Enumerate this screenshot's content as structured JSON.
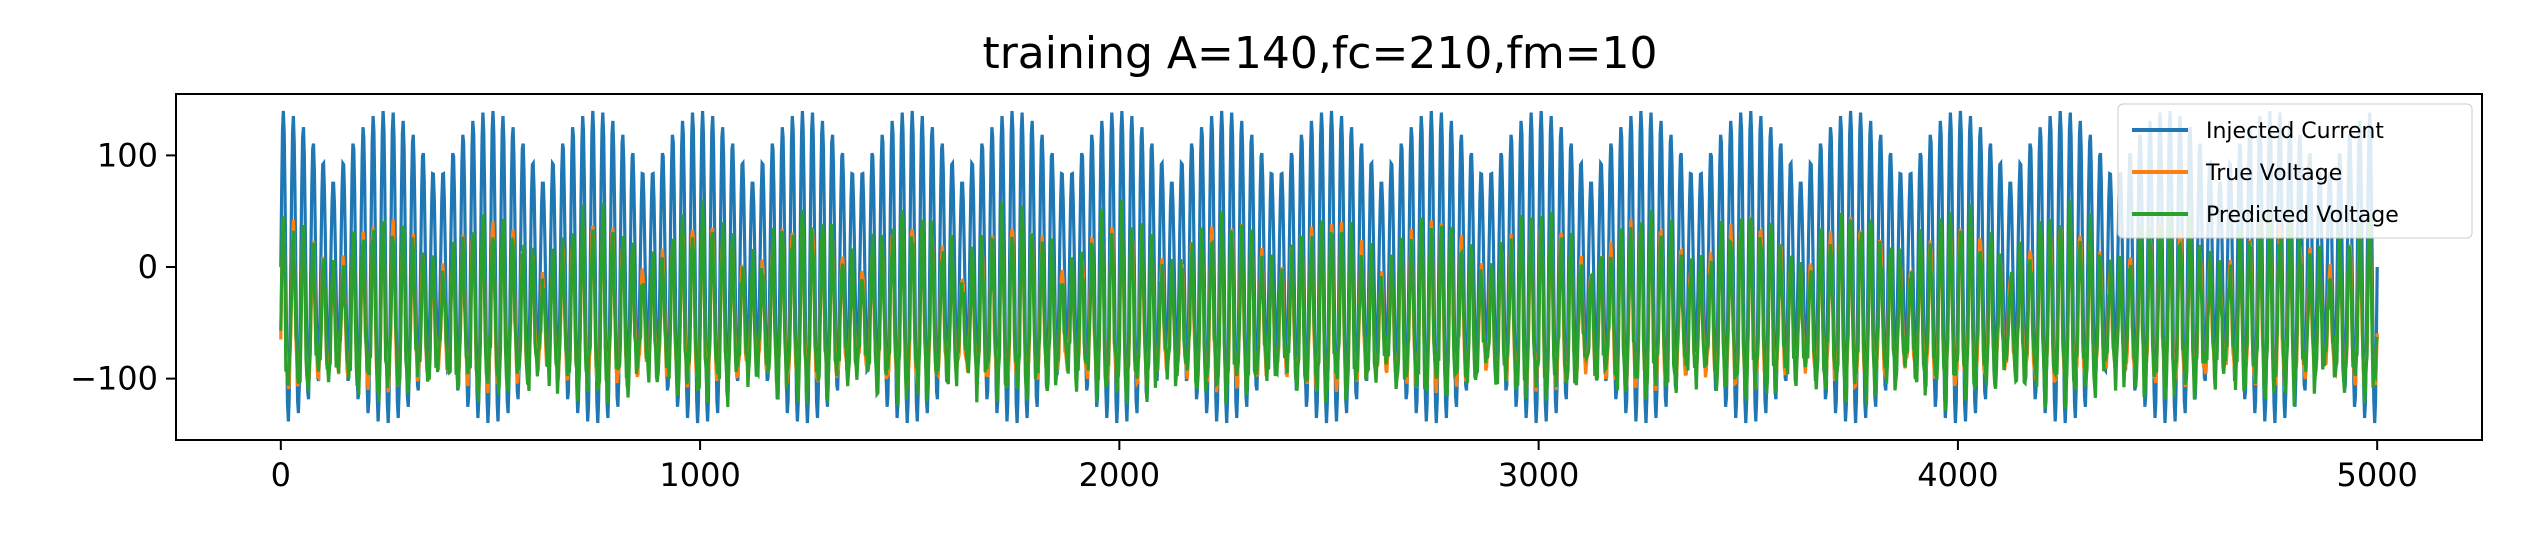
{
  "chart_data": {
    "type": "line",
    "title": "training A=140,fc=210,fm=10",
    "xlabel": "",
    "ylabel": "",
    "xlim": [
      -250,
      5250
    ],
    "ylim": [
      -155,
      155
    ],
    "x_ticks": [
      0,
      1000,
      2000,
      3000,
      4000,
      5000
    ],
    "x_tick_labels": [
      "0",
      "1000",
      "2000",
      "3000",
      "4000",
      "5000"
    ],
    "y_ticks": [
      100,
      0,
      -100
    ],
    "y_tick_labels": [
      "100",
      "0",
      "−100"
    ],
    "grid": false,
    "legend_position": "top-right",
    "series": [
      {
        "name": "Injected Current",
        "color": "#1f77b4",
        "x_start": 0,
        "x_end": 5000,
        "model": "A*sin(2*pi*fc*t)*|cos(2*pi*fm*t)| style AM wave with amplitude 140, DC-free",
        "amplitude": 140,
        "peaks_approx": [
          140,
          -140
        ]
      },
      {
        "name": "True Voltage",
        "color": "#ff7f0e",
        "x_start": 0,
        "x_end": 5000,
        "baseline": -65,
        "range_approx": [
          -125,
          45
        ]
      },
      {
        "name": "Predicted Voltage",
        "color": "#2ca02c",
        "x_start": 0,
        "x_end": 5000,
        "baseline": -65,
        "range_approx": [
          -140,
          60
        ]
      }
    ]
  }
}
